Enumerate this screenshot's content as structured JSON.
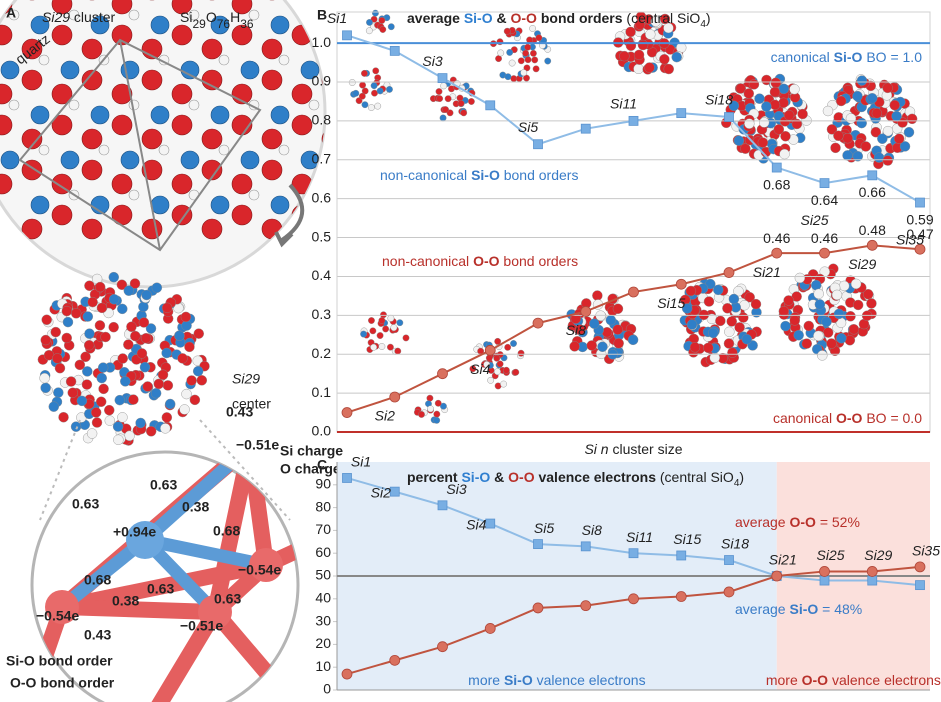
{
  "panel_a": {
    "letter": "A",
    "cluster_title_parts": [
      "Si29",
      " cluster"
    ],
    "formula_parts": [
      "Si",
      "29",
      "O",
      "76",
      "H",
      "36"
    ],
    "quartz": "quartz",
    "center_parts": [
      "Si29",
      "center"
    ],
    "charge_legend": [
      "Si charge",
      "O charge"
    ],
    "charges": [
      "−0.51e",
      "−0.54e",
      "−0.54e",
      "−0.51e",
      "+0.94e"
    ],
    "si_o_bond_orders": [
      0.63,
      0.68,
      0.68,
      0.63
    ],
    "o_o_bond_orders": [
      0.43,
      0.63,
      0.38,
      0.38,
      0.63,
      0.43
    ],
    "bond_legend": [
      "Si-O bond order",
      "O-O bond order"
    ]
  },
  "chart_data": [
    {
      "type": "line",
      "letter": "B",
      "title_parts": [
        "average ",
        "Si-O",
        " & ",
        "O-O",
        " bond orders ",
        "(central SiO",
        "4",
        ")"
      ],
      "x_label_parts": [
        "Si n",
        " cluster size"
      ],
      "categories": [
        "Si1",
        "Si2",
        "Si3",
        "Si4",
        "Si5",
        "Si8",
        "Si11",
        "Si15",
        "Si18",
        "Si21",
        "Si25",
        "Si29",
        "Si35"
      ],
      "series": [
        {
          "name": "Si-O",
          "color": "#8fbce6",
          "marker": "square",
          "values": [
            1.02,
            0.98,
            0.91,
            0.84,
            0.74,
            0.78,
            0.8,
            0.82,
            0.81,
            0.68,
            0.64,
            0.66,
            0.59
          ]
        },
        {
          "name": "O-O",
          "color": "#c0543f",
          "marker": "circle",
          "values": [
            0.05,
            0.09,
            0.15,
            0.21,
            0.28,
            0.31,
            0.36,
            0.38,
            0.41,
            0.46,
            0.46,
            0.48,
            0.47
          ]
        }
      ],
      "ylim": [
        0,
        1.08
      ],
      "yticks": [
        {
          "value": 0,
          "label": "0.0"
        },
        0.1,
        0.2,
        0.3,
        0.4,
        0.5,
        0.6,
        0.7,
        0.8,
        0.9,
        {
          "value": 1,
          "label": "1.0"
        }
      ],
      "grid": true,
      "reference_lines": [
        {
          "value": 1,
          "color": "#4a8fd8",
          "label_parts": [
            "canonical ",
            "Si-O",
            " BO = 1.0"
          ]
        },
        {
          "value": 0,
          "color": "#c0302a",
          "label_parts": [
            "canonical ",
            "O-O",
            " BO = 0.0"
          ]
        }
      ],
      "annotations": [
        {
          "color": "#3a7cc7",
          "parts": [
            "non-canonical ",
            "Si-O",
            " bond orders"
          ]
        },
        {
          "color": "#b8302a",
          "parts": [
            "non-canonical ",
            "O-O",
            " bond orders"
          ]
        }
      ]
    },
    {
      "type": "line",
      "letter": "C",
      "title_parts": [
        "percent ",
        "Si-O",
        " & ",
        "O-O",
        " valence electrons ",
        "(central SiO",
        "4",
        ")"
      ],
      "categories": [
        "Si1",
        "Si2",
        "Si3",
        "Si4",
        "Si5",
        "Si8",
        "Si11",
        "Si15",
        "Si18",
        "Si21",
        "Si25",
        "Si29",
        "Si35"
      ],
      "series": [
        {
          "name": "Si-O",
          "color": "#8fbce6",
          "marker": "square",
          "values": [
            93,
            87,
            81,
            73,
            64,
            63,
            60,
            59,
            57,
            50,
            48,
            48,
            46
          ]
        },
        {
          "name": "O-O",
          "color": "#c0543f",
          "marker": "circle",
          "values": [
            7,
            13,
            19,
            27,
            36,
            37,
            40,
            41,
            43,
            50,
            52,
            52,
            54
          ]
        }
      ],
      "ylim": [
        0,
        100
      ],
      "yticks": [
        0,
        10,
        20,
        30,
        40,
        50,
        60,
        70,
        80,
        90
      ],
      "grid": false,
      "reference_lines": [
        {
          "value": 50,
          "color": "#888888"
        }
      ],
      "regions": [
        {
          "start": "Si1",
          "end": "Si21",
          "color": "#e3edf8",
          "label_parts": [
            "more ",
            "Si-O",
            " valence electrons"
          ]
        },
        {
          "start": "Si21",
          "end": "Si35",
          "color": "#fbe0dc",
          "label_parts": [
            "more ",
            "O-O",
            " valence electrons"
          ]
        }
      ],
      "annotations": [
        {
          "color": "#b8302a",
          "parts": [
            "average ",
            "O-O",
            " = 52%"
          ]
        },
        {
          "color": "#3a7cc7",
          "parts": [
            "average ",
            "Si-O",
            " = 48%"
          ]
        }
      ]
    }
  ]
}
